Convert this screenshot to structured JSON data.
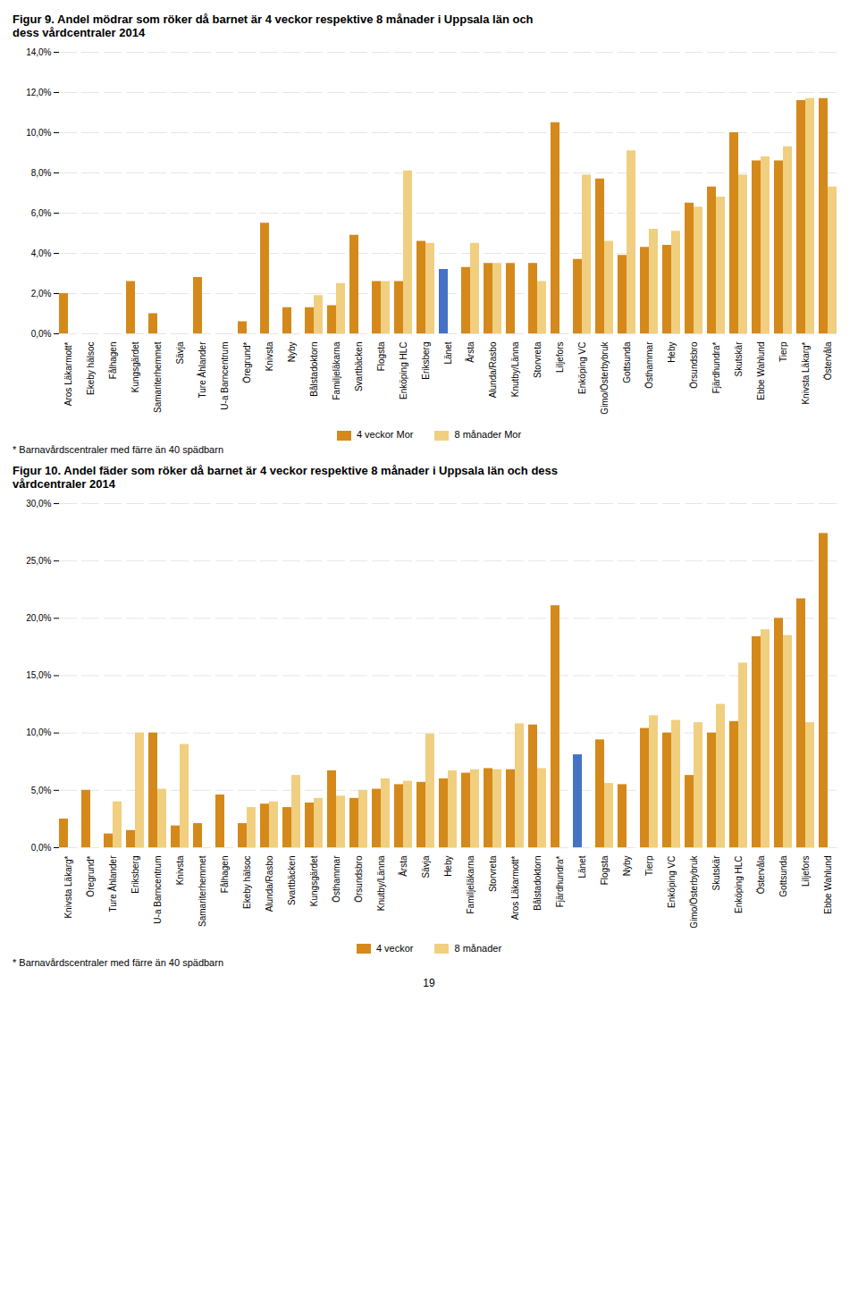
{
  "chart_data": [
    {
      "type": "bar",
      "title": "Figur 9. Andel mödrar som röker då barnet är 4 veckor respektive 8 månader i Uppsala län och\ndess vårdcentraler 2014",
      "categories": [
        "Aros Läkarmott*",
        "Ekeby hälsoc",
        "Fålhagen",
        "Kungsgärdet",
        "Samariterhemmet",
        "Sävja",
        "Ture Åhlander",
        "U-a Barncentrum",
        "Öregrund*",
        "Knivsta",
        "Nyby",
        "Bålstadoktorn",
        "Familjeläkarna",
        "Svartbäcken",
        "Flogsta",
        "Enköping HLC",
        "Eriksberg",
        "Länet",
        "Årsta",
        "Alunda/Rasbo",
        "Knutby/Länna",
        "Storvreta",
        "Liljefors",
        "Enköping VC",
        "Gimo/Österbybruk",
        "Gottsunda",
        "Östhammar",
        "Heby",
        "Örsundsbro",
        "Fjärdhundra*",
        "Skutskär",
        "Ebbe Wahlund",
        "Tierp",
        "Knivsta Läkarg*",
        "Östervåla"
      ],
      "series": [
        {
          "name": "4 veckor Mor",
          "color": "#D4891A",
          "colors": [
            "#D4891A",
            "#D4891A",
            "#D4891A",
            "#D4891A",
            "#D4891A",
            "#D4891A",
            "#D4891A",
            "#D4891A",
            "#D4891A",
            "#D4891A",
            "#D4891A",
            "#D4891A",
            "#D4891A",
            "#D4891A",
            "#D4891A",
            "#D4891A",
            "#D4891A",
            "#4472C4",
            "#D4891A",
            "#D4891A",
            "#D4891A",
            "#D4891A",
            "#D4891A",
            "#D4891A",
            "#D4891A",
            "#D4891A",
            "#D4891A",
            "#D4891A",
            "#D4891A",
            "#D4891A",
            "#D4891A",
            "#D4891A",
            "#D4891A",
            "#D4891A",
            "#D4891A"
          ],
          "values": [
            2.0,
            0.0,
            0.0,
            2.6,
            1.0,
            0.0,
            2.8,
            0.0,
            0.6,
            5.5,
            1.3,
            1.3,
            1.4,
            4.9,
            2.6,
            2.6,
            4.6,
            3.2,
            3.3,
            3.5,
            3.5,
            3.5,
            10.5,
            3.7,
            7.7,
            3.9,
            4.3,
            4.4,
            6.5,
            7.3,
            10.0,
            8.6,
            8.6,
            11.6,
            11.7
          ]
        },
        {
          "name": "8 månader Mor",
          "color": "#F0CF80",
          "colors": [
            "#F0CF80",
            "#F0CF80",
            "#F0CF80",
            "#F0CF80",
            "#F0CF80",
            "#F0CF80",
            "#F0CF80",
            "#F0CF80",
            "#F0CF80",
            "#F0CF80",
            "#F0CF80",
            "#F0CF80",
            "#F0CF80",
            "#F0CF80",
            "#F0CF80",
            "#F0CF80",
            "#F0CF80",
            "#4472C4",
            "#F0CF80",
            "#F0CF80",
            "#F0CF80",
            "#F0CF80",
            "#F0CF80",
            "#F0CF80",
            "#F0CF80",
            "#F0CF80",
            "#F0CF80",
            "#F0CF80",
            "#F0CF80",
            "#F0CF80",
            "#F0CF80",
            "#F0CF80",
            "#F0CF80",
            "#F0CF80",
            "#F0CF80"
          ],
          "values": [
            0.0,
            0.0,
            0.0,
            0.0,
            0.0,
            0.0,
            0.0,
            0.0,
            0.0,
            0.0,
            0.0,
            1.9,
            2.5,
            0.0,
            2.6,
            8.1,
            4.5,
            0.0,
            4.5,
            3.5,
            0.0,
            2.6,
            0.0,
            7.9,
            4.6,
            9.1,
            5.2,
            5.1,
            6.3,
            6.8,
            7.9,
            8.8,
            9.3,
            11.7,
            7.3
          ]
        }
      ],
      "ylim": [
        0,
        14.0
      ],
      "yticks": [
        {
          "value": 0,
          "label": "0,0%"
        },
        {
          "value": 2,
          "label": "2,0%"
        },
        {
          "value": 4,
          "label": "4,0%"
        },
        {
          "value": 6,
          "label": "6,0%"
        },
        {
          "value": 8,
          "label": "8,0%"
        },
        {
          "value": 10,
          "label": "10,0%"
        },
        {
          "value": 12,
          "label": "12,0%"
        },
        {
          "value": 14,
          "label": "14,0%"
        }
      ],
      "grid": true,
      "legend": "bottom",
      "annotations": [
        "* Barnavårdscentraler med färre än 40 spädbarn"
      ]
    },
    {
      "type": "bar",
      "title": "Figur 10. Andel fäder som röker då barnet är 4 veckor respektive 8 månader i Uppsala län och dess\nvårdcentraler 2014",
      "categories": [
        "Knivsta Läkarg*",
        "Öregrund*",
        "Ture Åhlander",
        "Eriksberg",
        "U-a Barncentrum",
        "Knivsta",
        "Samariterhemmet",
        "Fålhagen",
        "Ekeby hälsoc",
        "Alunda/Rasbo",
        "Svartbäcken",
        "Kungsgärdet",
        "Östhammar",
        "Örsundsbro",
        "Knutby/Länna",
        "Årsta",
        "Sävja",
        "Heby",
        "Familjeläkarna",
        "Storvreta",
        "Aros Läkarmott*",
        "Bålstadoktorn",
        "Fjärdhundra*",
        "Länet",
        "Flogsta",
        "Nyby",
        "Tierp",
        "Enköping VC",
        "Gimo/Österbybruk",
        "Skutskär",
        "Enköping HLC",
        "Östervåla",
        "Gottsunda",
        "Liljefors",
        "Ebbe Wahlund"
      ],
      "series": [
        {
          "name": "4 veckor",
          "color": "#D4891A",
          "colors": [
            "#D4891A",
            "#D4891A",
            "#D4891A",
            "#D4891A",
            "#D4891A",
            "#D4891A",
            "#D4891A",
            "#D4891A",
            "#D4891A",
            "#D4891A",
            "#D4891A",
            "#D4891A",
            "#D4891A",
            "#D4891A",
            "#D4891A",
            "#D4891A",
            "#D4891A",
            "#D4891A",
            "#D4891A",
            "#D4891A",
            "#D4891A",
            "#D4891A",
            "#D4891A",
            "#4472C4",
            "#D4891A",
            "#D4891A",
            "#D4891A",
            "#D4891A",
            "#D4891A",
            "#D4891A",
            "#D4891A",
            "#D4891A",
            "#D4891A",
            "#D4891A",
            "#D4891A"
          ],
          "values": [
            2.5,
            5.0,
            1.2,
            1.5,
            10.0,
            1.9,
            2.1,
            4.6,
            2.1,
            3.8,
            3.5,
            3.9,
            6.7,
            4.3,
            5.1,
            5.5,
            5.7,
            6.0,
            6.5,
            6.9,
            6.8,
            10.7,
            21.1,
            8.1,
            9.4,
            5.5,
            10.4,
            10.0,
            6.3,
            10.0,
            11.0,
            18.4,
            20.0,
            21.7,
            27.4
          ]
        },
        {
          "name": "8 månader",
          "color": "#F0CF80",
          "colors": [
            "#F0CF80",
            "#F0CF80",
            "#F0CF80",
            "#F0CF80",
            "#F0CF80",
            "#F0CF80",
            "#F0CF80",
            "#F0CF80",
            "#F0CF80",
            "#F0CF80",
            "#F0CF80",
            "#F0CF80",
            "#F0CF80",
            "#F0CF80",
            "#F0CF80",
            "#F0CF80",
            "#F0CF80",
            "#F0CF80",
            "#F0CF80",
            "#F0CF80",
            "#F0CF80",
            "#F0CF80",
            "#F0CF80",
            "#4472C4",
            "#F0CF80",
            "#F0CF80",
            "#F0CF80",
            "#F0CF80",
            "#F0CF80",
            "#F0CF80",
            "#F0CF80",
            "#F0CF80",
            "#F0CF80",
            "#F0CF80",
            "#F0CF80"
          ],
          "values": [
            0.0,
            0.0,
            4.0,
            10.0,
            5.1,
            9.0,
            0.0,
            0.0,
            3.5,
            4.0,
            6.3,
            4.3,
            4.5,
            5.0,
            6.0,
            5.8,
            9.9,
            6.7,
            6.8,
            6.8,
            10.8,
            6.9,
            0.0,
            0.0,
            5.6,
            0.0,
            11.5,
            11.1,
            10.9,
            12.5,
            16.1,
            19.0,
            18.5,
            10.9,
            0.0
          ]
        }
      ],
      "ylim": [
        0,
        30.0
      ],
      "yticks": [
        {
          "value": 0,
          "label": "0,0%"
        },
        {
          "value": 5,
          "label": "5,0%"
        },
        {
          "value": 10,
          "label": "10,0%"
        },
        {
          "value": 15,
          "label": "15,0%"
        },
        {
          "value": 20,
          "label": "20,0%"
        },
        {
          "value": 25,
          "label": "25,0%"
        },
        {
          "value": 30,
          "label": "30,0%"
        }
      ],
      "grid": true,
      "legend": "bottom",
      "annotations": [
        "* Barnavårdscentraler med färre än 40 spädbarn"
      ]
    }
  ],
  "page_number": "19"
}
